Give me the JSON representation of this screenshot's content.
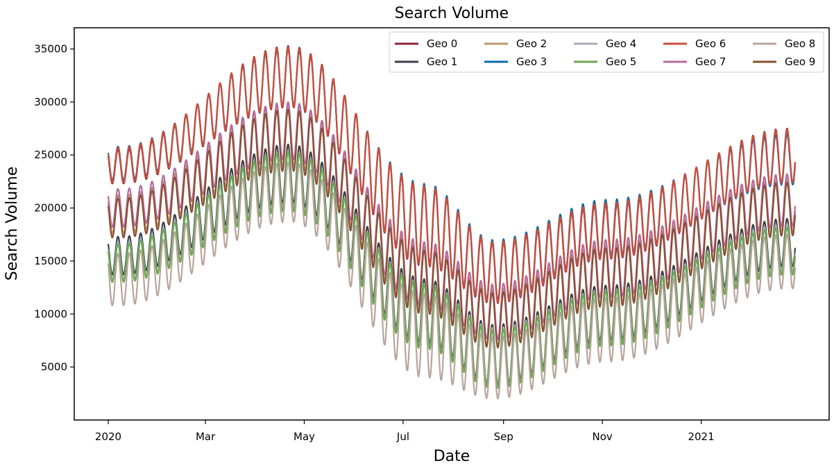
{
  "chart_data": {
    "type": "line",
    "title": "Search Volume",
    "xlabel": "Date",
    "ylabel": "Search Volume",
    "x_start": "2020-01-01",
    "x_end": "2021-02-28",
    "x_ticks": [
      {
        "date": "2020-01-01",
        "label": "2020"
      },
      {
        "date": "2020-03-01",
        "label": "Mar"
      },
      {
        "date": "2020-05-01",
        "label": "May"
      },
      {
        "date": "2020-07-01",
        "label": "Jul"
      },
      {
        "date": "2020-09-01",
        "label": "Sep"
      },
      {
        "date": "2020-11-01",
        "label": "Nov"
      },
      {
        "date": "2021-01-01",
        "label": "2021"
      }
    ],
    "ylim": [
      0,
      37000
    ],
    "y_ticks": [
      5000,
      10000,
      15000,
      20000,
      25000,
      30000,
      35000
    ],
    "grid": false,
    "legend_position": "top-right",
    "legend_columns": 5,
    "series": [
      {
        "name": "Geo 0",
        "color": "#8c2434",
        "peak_dates": [
          "2020-01-08",
          "2020-04-22",
          "2020-07-15",
          "2020-08-26",
          "2020-11-04",
          "2021-02-24"
        ],
        "peak_values": [
          25500,
          35300,
          22000,
          16700,
          20300,
          27500
        ],
        "trough_values": [
          22300,
          29500,
          14500,
          11000,
          15200,
          22300
        ]
      },
      {
        "name": "Geo 1",
        "color": "#3a3f4b",
        "peak_dates": [
          "2020-01-08",
          "2020-04-22",
          "2020-07-15",
          "2020-08-26",
          "2020-11-04",
          "2021-02-24"
        ],
        "peak_values": [
          17300,
          26000,
          13300,
          9000,
          12700,
          19000
        ],
        "trough_values": [
          13700,
          20500,
          7200,
          3300,
          7500,
          14500
        ]
      },
      {
        "name": "Geo 2",
        "color": "#b89968",
        "peak_dates": [
          "2020-01-08",
          "2020-04-22",
          "2020-07-15",
          "2020-08-26",
          "2020-11-04",
          "2021-02-24"
        ],
        "peak_values": [
          21200,
          29800,
          16300,
          12300,
          16500,
          22700
        ],
        "trough_values": [
          17600,
          24000,
          10300,
          7000,
          11000,
          17800
        ]
      },
      {
        "name": "Geo 3",
        "color": "#0a6aa8",
        "peak_dates": [
          "2020-01-08",
          "2020-04-22",
          "2020-07-15",
          "2020-08-26",
          "2020-11-04",
          "2021-02-24"
        ],
        "peak_values": [
          25800,
          35000,
          22300,
          17000,
          20800,
          27000
        ],
        "trough_values": [
          22600,
          29700,
          14700,
          11300,
          15500,
          22200
        ]
      },
      {
        "name": "Geo 4",
        "color": "#a9adb7",
        "peak_dates": [
          "2020-01-08",
          "2020-04-22",
          "2020-07-15",
          "2020-08-26",
          "2020-11-04",
          "2021-02-24"
        ],
        "peak_values": [
          16800,
          25400,
          12900,
          8700,
          12300,
          18500
        ],
        "trough_values": [
          13200,
          20000,
          6900,
          3100,
          7200,
          14000
        ]
      },
      {
        "name": "Geo 5",
        "color": "#6aa84f",
        "peak_dates": [
          "2020-01-08",
          "2020-04-22",
          "2020-07-15",
          "2020-08-26",
          "2020-11-04",
          "2021-02-24"
        ],
        "peak_values": [
          16600,
          25300,
          12800,
          8500,
          12200,
          18200
        ],
        "trough_values": [
          13000,
          19700,
          6700,
          3000,
          7000,
          13700
        ]
      },
      {
        "name": "Geo 6",
        "color": "#cc4e3a",
        "peak_dates": [
          "2020-01-08",
          "2020-04-22",
          "2020-07-15",
          "2020-08-26",
          "2020-11-04",
          "2021-02-24"
        ],
        "peak_values": [
          25700,
          35200,
          22100,
          16800,
          20500,
          27400
        ],
        "trough_values": [
          22400,
          29600,
          14600,
          11100,
          15300,
          22400
        ]
      },
      {
        "name": "Geo 7",
        "color": "#b5699b",
        "peak_dates": [
          "2020-01-08",
          "2020-04-22",
          "2020-07-15",
          "2020-08-26",
          "2020-11-04",
          "2021-02-24"
        ],
        "peak_values": [
          21800,
          30000,
          16800,
          12800,
          17000,
          23200
        ],
        "trough_values": [
          18200,
          24600,
          10800,
          7600,
          11600,
          18300
        ]
      },
      {
        "name": "Geo 8",
        "color": "#b8a49a",
        "peak_dates": [
          "2020-01-08",
          "2020-04-22",
          "2020-07-15",
          "2020-08-26",
          "2020-11-04",
          "2021-02-24"
        ],
        "peak_values": [
          15700,
          24300,
          11900,
          7800,
          11500,
          17500
        ],
        "trough_values": [
          10800,
          18700,
          4000,
          2000,
          5500,
          12400
        ]
      },
      {
        "name": "Geo 9",
        "color": "#8a4f2f",
        "peak_dates": [
          "2020-01-08",
          "2020-04-22",
          "2020-07-15",
          "2020-08-26",
          "2020-11-04",
          "2021-02-24"
        ],
        "peak_values": [
          20900,
          29300,
          16000,
          12000,
          16200,
          22400
        ],
        "trough_values": [
          17200,
          23500,
          10000,
          6800,
          10700,
          17400
        ]
      }
    ]
  }
}
